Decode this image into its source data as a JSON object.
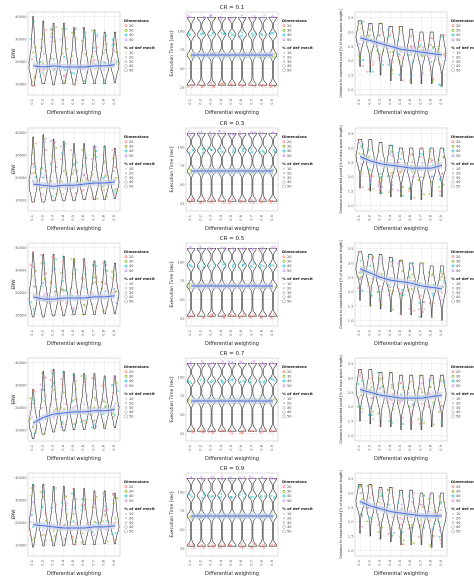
{
  "figure": {
    "row_titles": [
      "CR = 0.1",
      "CR = 0.3",
      "CR = 0.5",
      "CR = 0.7",
      "CR = 0.9"
    ],
    "x_label": "Differential weighting",
    "x_ticks": [
      "0.1",
      "0.2",
      "0.3",
      "0.4",
      "0.5",
      "0.6",
      "0.7",
      "0.8",
      "0.9"
    ],
    "columns": [
      {
        "ylabel": "ERW",
        "y_ticks": [
          "40000",
          "30000",
          "20000",
          "10000"
        ]
      },
      {
        "ylabel": "Execution Time [sec]",
        "y_ticks": [
          "100",
          "75",
          "50",
          "25"
        ]
      },
      {
        "ylabel": "Distance to expected point [% of max space length]",
        "y_ticks": [
          "3.5",
          "3.0",
          "2.5",
          "2.0",
          "1.5",
          "1.0"
        ]
      }
    ],
    "legend": {
      "dim_title": "Dimensions",
      "dim_values": [
        "20",
        "30",
        "40",
        "50"
      ],
      "def_title": "% of def mecit",
      "def_values": [
        "10",
        "20",
        "30",
        "40",
        "50"
      ]
    }
  },
  "colors": {
    "dimensions": [
      "#f8766d",
      "#7cae00",
      "#00bfc4",
      "#c77cff"
    ],
    "smooth": "#4a6fe0",
    "band": "#c7d0e6",
    "violin": "#222222",
    "grid": "#e6e6e6"
  },
  "chart_data": {
    "type": "violin",
    "layout": "5 rows (CR) x 3 columns (metric)",
    "x": [
      0.1,
      0.2,
      0.3,
      0.4,
      0.5,
      0.6,
      0.7,
      0.8,
      0.9
    ],
    "panels": [
      {
        "row": "CR = 0.1",
        "metric": "ERW",
        "ylim": [
          5000,
          42000
        ],
        "median": [
          18000,
          17500,
          18000,
          17500,
          17500,
          17500,
          18000,
          18000,
          18500
        ],
        "lo": [
          9000,
          10000,
          9500,
          10000,
          9500,
          10000,
          10000,
          10000,
          10500
        ],
        "hi": [
          40000,
          38000,
          37000,
          37000,
          35000,
          35000,
          34000,
          33000,
          33000
        ]
      },
      {
        "row": "CR = 0.1",
        "metric": "Execution Time",
        "ylim": [
          15,
          125
        ],
        "median": [
          68,
          68,
          68,
          68,
          68,
          68,
          68,
          68,
          68
        ],
        "lo": [
          28,
          28,
          28,
          28,
          28,
          28,
          28,
          28,
          28
        ],
        "hi": [
          118,
          118,
          118,
          118,
          118,
          118,
          118,
          118,
          118
        ]
      },
      {
        "row": "CR = 0.1",
        "metric": "Distance",
        "ylim": [
          0.8,
          3.7
        ],
        "median": [
          2.8,
          2.7,
          2.6,
          2.5,
          2.4,
          2.35,
          2.3,
          2.25,
          2.2
        ],
        "lo": [
          1.8,
          1.6,
          1.5,
          1.3,
          1.3,
          1.2,
          1.2,
          1.2,
          1.1
        ],
        "hi": [
          3.4,
          3.3,
          3.3,
          3.2,
          3.2,
          3.1,
          3.0,
          3.0,
          2.9
        ]
      },
      {
        "row": "CR = 0.3",
        "metric": "ERW",
        "ylim": [
          5000,
          42000
        ],
        "median": [
          17000,
          16500,
          16000,
          16500,
          16500,
          17000,
          17500,
          17500,
          18000
        ],
        "lo": [
          9000,
          9000,
          9500,
          9500,
          9500,
          10000,
          10000,
          10000,
          10500
        ],
        "hi": [
          38000,
          39000,
          37000,
          36000,
          35000,
          35000,
          34000,
          34000,
          33000
        ]
      },
      {
        "row": "CR = 0.3",
        "metric": "Execution Time",
        "ylim": [
          15,
          125
        ],
        "median": [
          68,
          68,
          68,
          68,
          68,
          68,
          68,
          68,
          68
        ],
        "lo": [
          28,
          28,
          28,
          28,
          28,
          28,
          28,
          28,
          28
        ],
        "hi": [
          118,
          118,
          118,
          118,
          118,
          118,
          118,
          118,
          118
        ]
      },
      {
        "row": "CR = 0.3",
        "metric": "Distance",
        "ylim": [
          0.8,
          3.7
        ],
        "median": [
          2.7,
          2.55,
          2.45,
          2.4,
          2.35,
          2.3,
          2.3,
          2.3,
          2.4
        ],
        "lo": [
          1.6,
          1.5,
          1.4,
          1.3,
          1.3,
          1.2,
          1.2,
          1.3,
          1.3
        ],
        "hi": [
          3.3,
          3.3,
          3.2,
          3.1,
          3.0,
          3.0,
          3.0,
          3.0,
          3.0
        ]
      },
      {
        "row": "CR = 0.5",
        "metric": "ERW",
        "ylim": [
          5000,
          42000
        ],
        "median": [
          18000,
          17000,
          17000,
          17500,
          17500,
          17500,
          18000,
          18000,
          18500
        ],
        "lo": [
          9000,
          9000,
          9500,
          9500,
          10000,
          10000,
          10000,
          10500,
          10500
        ],
        "hi": [
          38000,
          37000,
          37000,
          36000,
          35000,
          35000,
          34000,
          34000,
          33000
        ]
      },
      {
        "row": "CR = 0.5",
        "metric": "Execution Time",
        "ylim": [
          15,
          125
        ],
        "median": [
          68,
          68,
          68,
          68,
          68,
          68,
          68,
          68,
          68
        ],
        "lo": [
          28,
          28,
          28,
          28,
          28,
          28,
          28,
          28,
          28
        ],
        "hi": [
          118,
          118,
          118,
          118,
          118,
          118,
          118,
          118,
          118
        ]
      },
      {
        "row": "CR = 0.5",
        "metric": "Distance",
        "ylim": [
          0.8,
          3.7
        ],
        "median": [
          2.8,
          2.65,
          2.5,
          2.4,
          2.35,
          2.3,
          2.2,
          2.15,
          2.1
        ],
        "lo": [
          1.7,
          1.5,
          1.4,
          1.3,
          1.2,
          1.2,
          1.1,
          1.1,
          1.0
        ],
        "hi": [
          3.4,
          3.3,
          3.3,
          3.2,
          3.1,
          3.0,
          3.0,
          2.9,
          2.9
        ]
      },
      {
        "row": "CR = 0.7",
        "metric": "ERW",
        "ylim": [
          5000,
          42000
        ],
        "median": [
          13000,
          15500,
          17000,
          17500,
          18000,
          18000,
          18500,
          18500,
          19000
        ],
        "lo": [
          6000,
          8000,
          9000,
          9500,
          10000,
          10000,
          10500,
          10500,
          11000
        ],
        "hi": [
          28000,
          36000,
          37000,
          36000,
          35000,
          35000,
          35000,
          34000,
          34000
        ]
      },
      {
        "row": "CR = 0.7",
        "metric": "Execution Time",
        "ylim": [
          15,
          125
        ],
        "median": [
          68,
          68,
          68,
          68,
          68,
          68,
          68,
          68,
          68
        ],
        "lo": [
          28,
          28,
          28,
          28,
          28,
          28,
          28,
          28,
          28
        ],
        "hi": [
          118,
          118,
          118,
          118,
          118,
          118,
          118,
          118,
          118
        ]
      },
      {
        "row": "CR = 0.7",
        "metric": "Distance",
        "ylim": [
          0.8,
          3.7
        ],
        "median": [
          2.6,
          2.5,
          2.4,
          2.35,
          2.3,
          2.3,
          2.3,
          2.35,
          2.4
        ],
        "lo": [
          1.5,
          1.4,
          1.3,
          1.3,
          1.2,
          1.2,
          1.2,
          1.3,
          1.3
        ],
        "hi": [
          3.3,
          3.3,
          3.2,
          3.2,
          3.1,
          3.1,
          3.1,
          3.1,
          3.1
        ]
      },
      {
        "row": "CR = 0.9",
        "metric": "ERW",
        "ylim": [
          5000,
          42000
        ],
        "median": [
          19000,
          18500,
          18000,
          17500,
          17500,
          17500,
          18000,
          18000,
          18500
        ],
        "lo": [
          9000,
          9500,
          9500,
          9500,
          10000,
          10000,
          10000,
          10500,
          10500
        ],
        "hi": [
          37000,
          37000,
          36000,
          36000,
          35000,
          35000,
          34000,
          34000,
          33000
        ]
      },
      {
        "row": "CR = 0.9",
        "metric": "Execution Time",
        "ylim": [
          15,
          125
        ],
        "median": [
          68,
          68,
          68,
          68,
          68,
          68,
          68,
          68,
          68
        ],
        "lo": [
          28,
          28,
          28,
          28,
          28,
          28,
          28,
          28,
          28
        ],
        "hi": [
          118,
          118,
          118,
          118,
          118,
          118,
          118,
          118,
          118
        ]
      },
      {
        "row": "CR = 0.9",
        "metric": "Distance",
        "ylim": [
          0.8,
          3.7
        ],
        "median": [
          2.7,
          2.55,
          2.45,
          2.35,
          2.3,
          2.25,
          2.2,
          2.2,
          2.2
        ],
        "lo": [
          1.6,
          1.5,
          1.4,
          1.3,
          1.2,
          1.2,
          1.2,
          1.1,
          1.1
        ],
        "hi": [
          3.3,
          3.3,
          3.2,
          3.2,
          3.1,
          3.1,
          3.0,
          3.0,
          3.0
        ]
      }
    ],
    "exec_time_levels": [
      28,
      68,
      95,
      118
    ],
    "grid": true,
    "legend_placement": "right of each panel"
  }
}
